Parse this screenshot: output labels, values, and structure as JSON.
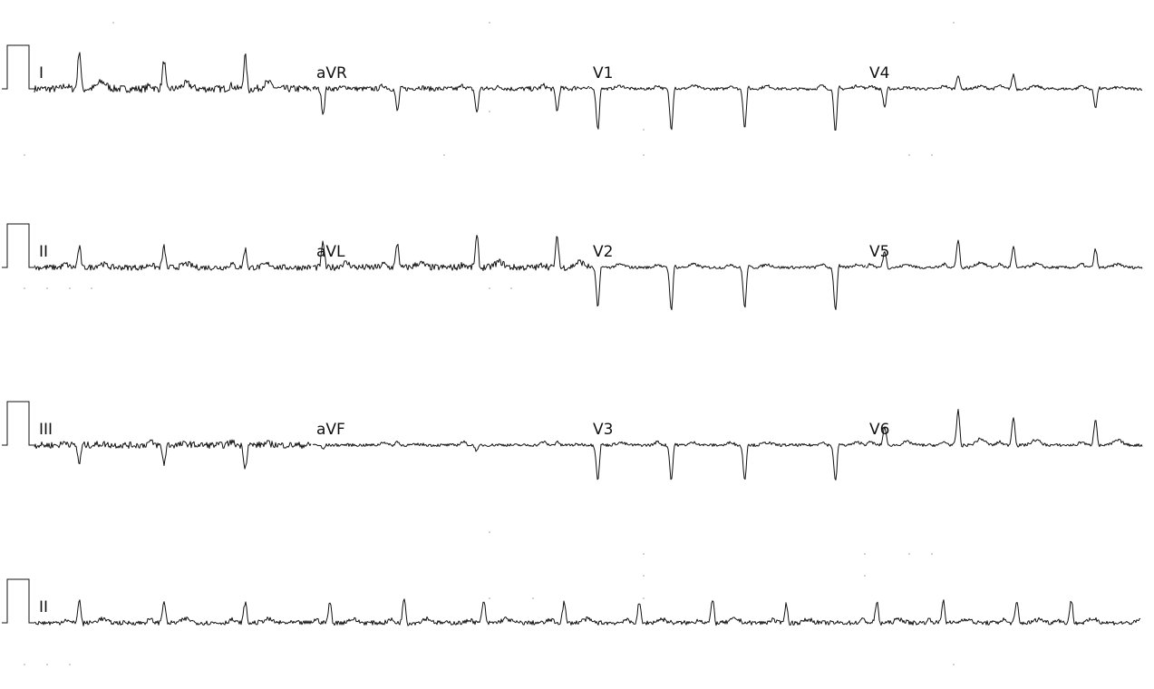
{
  "chart_data": {
    "type": "line",
    "title": "",
    "rows": [
      {
        "leads": [
          "I",
          "aVR",
          "V1",
          "V4"
        ]
      },
      {
        "leads": [
          "II",
          "aVL",
          "V2",
          "V5"
        ]
      },
      {
        "leads": [
          "III",
          "aVF",
          "V3",
          "V6"
        ]
      },
      {
        "leads": [
          "II"
        ]
      }
    ],
    "beats": {
      "I": [
        {
          "t": 0.52,
          "amp": 0.95
        },
        {
          "t": 1.5,
          "amp": 0.7
        },
        {
          "t": 2.44,
          "amp": 0.8
        }
      ],
      "aVR": [
        {
          "t": 0.12,
          "amp": -0.6
        },
        {
          "t": 0.98,
          "amp": -0.55
        },
        {
          "t": 1.9,
          "amp": -0.6
        },
        {
          "t": 2.83,
          "amp": -0.55
        }
      ],
      "V1": [
        {
          "t": 0.1,
          "amp": -1.0
        },
        {
          "t": 0.95,
          "amp": -1.0
        },
        {
          "t": 1.8,
          "amp": -0.95
        },
        {
          "t": 2.85,
          "amp": -1.05
        }
      ],
      "V4": [
        {
          "t": 0.22,
          "amp": -0.45
        },
        {
          "t": 1.07,
          "amp": 0.35
        },
        {
          "t": 1.71,
          "amp": 0.35
        },
        {
          "t": 2.66,
          "amp": -0.45
        }
      ],
      "II": [
        {
          "t": 0.52,
          "amp": 0.5
        },
        {
          "t": 1.5,
          "amp": 0.5
        },
        {
          "t": 2.44,
          "amp": 0.45
        }
      ],
      "aVL": [
        {
          "t": 0.12,
          "amp": 0.6
        },
        {
          "t": 0.98,
          "amp": 0.6
        },
        {
          "t": 1.9,
          "amp": 0.75
        },
        {
          "t": 2.83,
          "amp": 0.75
        }
      ],
      "V2": [
        {
          "t": 0.1,
          "amp": -1.0
        },
        {
          "t": 0.95,
          "amp": -1.05
        },
        {
          "t": 1.8,
          "amp": -1.0
        },
        {
          "t": 2.85,
          "amp": -1.05
        }
      ],
      "V5": [
        {
          "t": 0.22,
          "amp": 0.4
        },
        {
          "t": 1.07,
          "amp": 0.7
        },
        {
          "t": 1.71,
          "amp": 0.5
        },
        {
          "t": 2.66,
          "amp": 0.45
        }
      ],
      "III": [
        {
          "t": 0.52,
          "amp": -0.45
        },
        {
          "t": 1.5,
          "amp": -0.45
        },
        {
          "t": 2.44,
          "amp": -0.55
        }
      ],
      "aVF": [
        {
          "t": 0.12,
          "amp": -0.1
        },
        {
          "t": 0.98,
          "amp": 0.1
        },
        {
          "t": 1.9,
          "amp": -0.15
        },
        {
          "t": 2.83,
          "amp": 0.1
        }
      ],
      "V3": [
        {
          "t": 0.1,
          "amp": -0.85
        },
        {
          "t": 0.95,
          "amp": -0.85
        },
        {
          "t": 1.8,
          "amp": -0.85
        },
        {
          "t": 2.85,
          "amp": -0.9
        }
      ],
      "V6": [
        {
          "t": 0.22,
          "amp": 0.45
        },
        {
          "t": 1.07,
          "amp": 0.85
        },
        {
          "t": 1.71,
          "amp": 0.7
        },
        {
          "t": 2.66,
          "amp": 0.65
        }
      ],
      "rhythm_II": [
        {
          "t": 0.52,
          "amp": 0.55
        },
        {
          "t": 1.5,
          "amp": 0.55
        },
        {
          "t": 2.44,
          "amp": 0.5
        },
        {
          "t": 3.42,
          "amp": 0.5
        },
        {
          "t": 4.28,
          "amp": 0.6
        },
        {
          "t": 5.2,
          "amp": 0.55
        },
        {
          "t": 6.13,
          "amp": 0.5
        },
        {
          "t": 7.0,
          "amp": 0.5
        },
        {
          "t": 7.85,
          "amp": 0.55
        },
        {
          "t": 8.7,
          "amp": 0.45
        },
        {
          "t": 9.75,
          "amp": 0.5
        },
        {
          "t": 10.52,
          "amp": 0.55
        },
        {
          "t": 11.37,
          "amp": 0.5
        },
        {
          "t": 12.0,
          "amp": 0.55
        },
        {
          "t": 12.96,
          "amp": 0.45
        }
      ]
    },
    "colors": {
      "trace": "#111111",
      "background": "#ffffff",
      "dots": "#9a9a9a"
    }
  }
}
